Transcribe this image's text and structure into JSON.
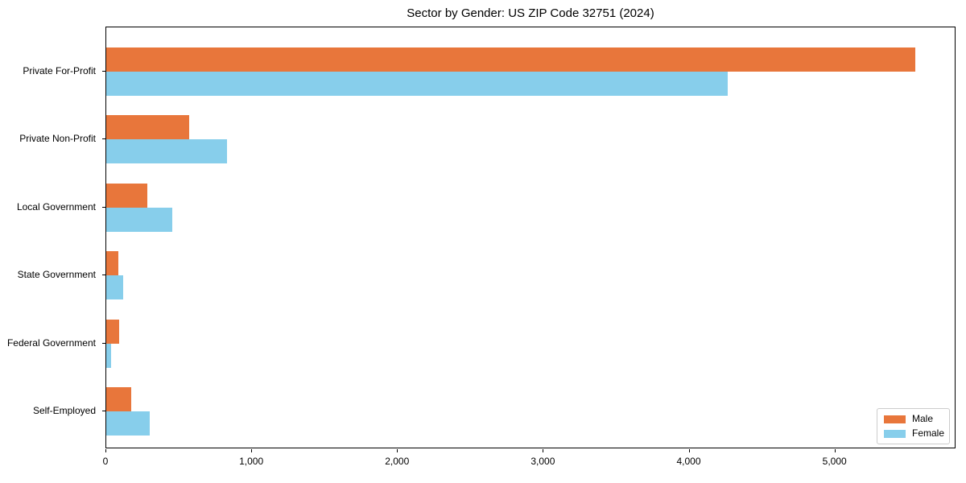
{
  "chart_data": {
    "type": "bar",
    "orientation": "horizontal",
    "title": "Sector by Gender: US ZIP Code 32751 (2024)",
    "categories": [
      "Private For-Profit",
      "Private Non-Profit",
      "Local Government",
      "State Government",
      "Federal Government",
      "Self-Employed"
    ],
    "series": [
      {
        "name": "Male",
        "color": "#E8763B",
        "values": [
          5550,
          570,
          280,
          85,
          90,
          170
        ]
      },
      {
        "name": "Female",
        "color": "#87CEEB",
        "values": [
          4260,
          830,
          450,
          115,
          35,
          300
        ]
      }
    ],
    "xlabel": "",
    "ylabel": "",
    "xlim": [
      0,
      5830
    ],
    "xticks": [
      0,
      1000,
      2000,
      3000,
      4000,
      5000
    ],
    "xtick_labels": [
      "0",
      "1,000",
      "2,000",
      "3,000",
      "4,000",
      "5,000"
    ],
    "legend": {
      "position": "lower right",
      "entries": [
        "Male",
        "Female"
      ]
    },
    "grid": false,
    "background_color": "#ffffff",
    "spine_color": "#000000"
  }
}
